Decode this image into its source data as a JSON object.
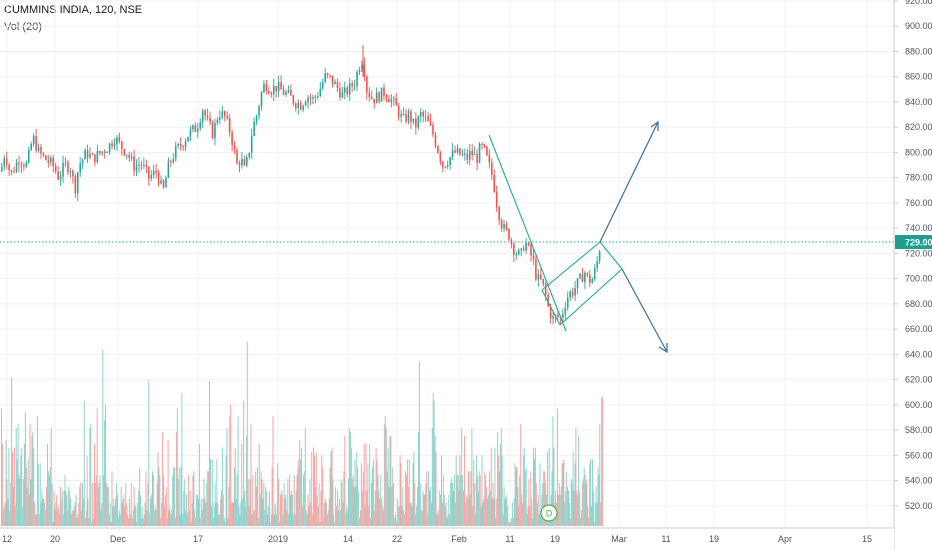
{
  "header": {
    "symbol_line": "CUMMINS INDIA, 120, NSE",
    "volume_label": "Vol (20)"
  },
  "colors": {
    "up": "#26a69a",
    "down": "#ef5350",
    "vol_up": "#8fd3cb",
    "vol_down": "#f7a6a4",
    "drawing": "#26a69a",
    "arrow": "#3d6f93",
    "grid": "#eef0f3",
    "last_price_bg": "#1e9e8f"
  },
  "chart_data": {
    "type": "candlestick",
    "y_axis": {
      "ticks": [
        "920.00",
        "900.00",
        "880.00",
        "860.00",
        "840.00",
        "820.00",
        "800.00",
        "780.00",
        "760.00",
        "740.00",
        "720.00",
        "700.00",
        "680.00",
        "660.00",
        "640.00",
        "620.00",
        "600.00",
        "580.00",
        "560.00",
        "540.00",
        "520.00"
      ],
      "range": [
        511,
        921
      ]
    },
    "x_axis": {
      "labels": [
        "12",
        "20",
        "Dec",
        "17",
        "2019",
        "14",
        "22",
        "Feb",
        "11",
        "19",
        "Mar",
        "11",
        "19",
        "Apr",
        "15"
      ]
    },
    "last_price": {
      "label": "729.00",
      "value": 729
    },
    "series": [
      {
        "name": "price",
        "path": [
          [
            0,
            785
          ],
          [
            4,
            800
          ],
          [
            10,
            782
          ],
          [
            18,
            795
          ],
          [
            26,
            790
          ],
          [
            32,
            812
          ],
          [
            38,
            800
          ],
          [
            44,
            795
          ],
          [
            52,
            790
          ],
          [
            58,
            780
          ],
          [
            64,
            790
          ],
          [
            70,
            788
          ],
          [
            74,
            770
          ],
          [
            78,
            790
          ],
          [
            86,
            800
          ],
          [
            92,
            795
          ],
          [
            100,
            800
          ],
          [
            108,
            805
          ],
          [
            114,
            812
          ],
          [
            120,
            805
          ],
          [
            126,
            800
          ],
          [
            134,
            788
          ],
          [
            140,
            792
          ],
          [
            148,
            780
          ],
          [
            156,
            785
          ],
          [
            162,
            768
          ],
          [
            168,
            790
          ],
          [
            174,
            800
          ],
          [
            182,
            808
          ],
          [
            188,
            815
          ],
          [
            196,
            820
          ],
          [
            202,
            835
          ],
          [
            206,
            825
          ],
          [
            212,
            815
          ],
          [
            218,
            832
          ],
          [
            224,
            828
          ],
          [
            230,
            815
          ],
          [
            236,
            790
          ],
          [
            240,
            795
          ],
          [
            244,
            785
          ],
          [
            248,
            800
          ],
          [
            252,
            820
          ],
          [
            256,
            830
          ],
          [
            260,
            845
          ],
          [
            264,
            855
          ],
          [
            270,
            850
          ],
          [
            276,
            852
          ],
          [
            282,
            848
          ],
          [
            288,
            845
          ],
          [
            294,
            840
          ],
          [
            300,
            838
          ],
          [
            306,
            845
          ],
          [
            312,
            842
          ],
          [
            318,
            848
          ],
          [
            324,
            860
          ],
          [
            330,
            858
          ],
          [
            336,
            852
          ],
          [
            342,
            845
          ],
          [
            348,
            850
          ],
          [
            354,
            856
          ],
          [
            358,
            868
          ],
          [
            362,
            875
          ],
          [
            366,
            850
          ],
          [
            372,
            842
          ],
          [
            378,
            845
          ],
          [
            384,
            848
          ],
          [
            390,
            842
          ],
          [
            396,
            835
          ],
          [
            402,
            825
          ],
          [
            408,
            830
          ],
          [
            414,
            820
          ],
          [
            420,
            830
          ],
          [
            426,
            825
          ],
          [
            432,
            815
          ],
          [
            438,
            800
          ],
          [
            442,
            790
          ],
          [
            448,
            795
          ],
          [
            454,
            800
          ],
          [
            460,
            798
          ],
          [
            466,
            795
          ],
          [
            470,
            800
          ],
          [
            476,
            795
          ],
          [
            480,
            805
          ],
          [
            484,
            800
          ],
          [
            488,
            790
          ],
          [
            492,
            780
          ],
          [
            496,
            760
          ],
          [
            500,
            745
          ],
          [
            504,
            738
          ],
          [
            508,
            735
          ],
          [
            512,
            725
          ],
          [
            516,
            720
          ],
          [
            520,
            718
          ],
          [
            524,
            730
          ],
          [
            528,
            722
          ],
          [
            532,
            715
          ],
          [
            536,
            700
          ],
          [
            540,
            698
          ],
          [
            544,
            690
          ],
          [
            548,
            675
          ],
          [
            552,
            668
          ],
          [
            556,
            670
          ],
          [
            560,
            668
          ],
          [
            564,
            680
          ],
          [
            568,
            688
          ],
          [
            572,
            690
          ],
          [
            576,
            695
          ],
          [
            580,
            700
          ],
          [
            584,
            705
          ],
          [
            588,
            698
          ],
          [
            592,
            700
          ],
          [
            596,
            712
          ],
          [
            600,
            729
          ]
        ]
      },
      {
        "name": "volume",
        "values": [
          30,
          21,
          4,
          5,
          6,
          22,
          12,
          7,
          20,
          4,
          11,
          38,
          19,
          10,
          20,
          5,
          25,
          17,
          26,
          13,
          12,
          18,
          20,
          5,
          12,
          21,
          29,
          15,
          10,
          17,
          8,
          26,
          12,
          23,
          24,
          20,
          6,
          3,
          3,
          28,
          16,
          3,
          16,
          6,
          9,
          7,
          7,
          6,
          4,
          10,
          21,
          14,
          13,
          15,
          25,
          11,
          1,
          9,
          4,
          6,
          8,
          4,
          5,
          3,
          10,
          7,
          9,
          3,
          9,
          13,
          9,
          8,
          4,
          10,
          9,
          7,
          3,
          4,
          4,
          5,
          6,
          8,
          2,
          3,
          6,
          10,
          11,
          4,
          11,
          7,
          32,
          2,
          4,
          18,
          7,
          2,
          25,
          26,
          1,
          11,
          2,
          21,
          11,
          13,
          30,
          10,
          11,
          13,
          4,
          6,
          45,
          13,
          27,
          31,
          11,
          10,
          10,
          3,
          6,
          1,
          14,
          5,
          7,
          5,
          7,
          11,
          8,
          2,
          4,
          3,
          10,
          6,
          7,
          8,
          5,
          11,
          6,
          3,
          2,
          7,
          3,
          11,
          2,
          4,
          10,
          5,
          5,
          1,
          6,
          9,
          15,
          8,
          2,
          5,
          2,
          3,
          6,
          14,
          4,
          11,
          37,
          3,
          7,
          8,
          14,
          13,
          4,
          5,
          4,
          11,
          19,
          15,
          13,
          2,
          6,
          24,
          13,
          5,
          8,
          10,
          2,
          22,
          4,
          5,
          3,
          4,
          13,
          15,
          15,
          2,
          24,
          30,
          12,
          15,
          3,
          15,
          34,
          3,
          9,
          12,
          4,
          8,
          3,
          13,
          4,
          9,
          1,
          6,
          13,
          14,
          4,
          2,
          8,
          8,
          7,
          21,
          2,
          7,
          4,
          7,
          12,
          7,
          6,
          11,
          14,
          14,
          37,
          17,
          5,
          17,
          2,
          5,
          11,
          6,
          17,
          6,
          3,
          3,
          7,
          9,
          20,
          8,
          2,
          1,
          18,
          25,
          2,
          10,
          28,
          31,
          6,
          6,
          6,
          15,
          20,
          7,
          13,
          28,
          5,
          3,
          6,
          21,
          7,
          32,
          9,
          5,
          23,
          47,
          12,
          5,
          12,
          26,
          3,
          13,
          4,
          4,
          14,
          10,
          15,
          2,
          21,
          8,
          14,
          12,
          7,
          11,
          4,
          10,
          9,
          3,
          5,
          9,
          1,
          3,
          15,
          28,
          3,
          6,
          5,
          3,
          16,
          12,
          1,
          8,
          9,
          8,
          3,
          11,
          7,
          8,
          4,
          12,
          3,
          13,
          8,
          9,
          8,
          3,
          13,
          3,
          9,
          13,
          15,
          17,
          22,
          17,
          20,
          5,
          13,
          14,
          25,
          4,
          3,
          8,
          5,
          12,
          6,
          19,
          3,
          20,
          18,
          10,
          19,
          8,
          5,
          11,
          1,
          9,
          18,
          15,
          2,
          6,
          7,
          6,
          3,
          4,
          7,
          15,
          19,
          20,
          12,
          3,
          1,
          10,
          5,
          9,
          4,
          7,
          4,
          12,
          11,
          6,
          14,
          23,
          3,
          5,
          4,
          12,
          25,
          24,
          20,
          12,
          13,
          10,
          17,
          10,
          19,
          15,
          9,
          2,
          4,
          16,
          9,
          14,
          21,
          5,
          21,
          9,
          16,
          5,
          21,
          2,
          11,
          15,
          17,
          4,
          9,
          20,
          17,
          13,
          9,
          7,
          13,
          7,
          5,
          4,
          26,
          28,
          25,
          14,
          20,
          10,
          23,
          23,
          10,
          15,
          11,
          2,
          3,
          1,
          7,
          5,
          5,
          18,
          16,
          5,
          10,
          4,
          3,
          14,
          13,
          17,
          10,
          17,
          6,
          6,
          5,
          16,
          19,
          11,
          3,
          5,
          10,
          24,
          42,
          11,
          4,
          4,
          9,
          8,
          8,
          11,
          14,
          3,
          14,
          9,
          10,
          6,
          25,
          34,
          32,
          23,
          19,
          3,
          3,
          4,
          9,
          8,
          18,
          6,
          13,
          8,
          5,
          6,
          2,
          3,
          8,
          3,
          11,
          12,
          11,
          9,
          13,
          6,
          18,
          13,
          13,
          9,
          18,
          13,
          25,
          13,
          9,
          23,
          6,
          8,
          7,
          14,
          14,
          8,
          14,
          25,
          5,
          17,
          11,
          3,
          18,
          13,
          9,
          14,
          13,
          5,
          18,
          6,
          7,
          14,
          13,
          10,
          7,
          8,
          14,
          9,
          20,
          7,
          11,
          7,
          20,
          2,
          7,
          24,
          18,
          14,
          21,
          25,
          18,
          3,
          10,
          7,
          7,
          8,
          5,
          1,
          1,
          1,
          2,
          6,
          2,
          7,
          16,
          15,
          15,
          10,
          5,
          13,
          26,
          8,
          6,
          18,
          20,
          14,
          15,
          3,
          5,
          12,
          5,
          14,
          7,
          2,
          20,
          17,
          20,
          11,
          6,
          8,
          3,
          16,
          3,
          8,
          11,
          14,
          14,
          11,
          8,
          19,
          5,
          20,
          5,
          8,
          14,
          28,
          20,
          6,
          9,
          6,
          30,
          8,
          11,
          8,
          10,
          16,
          16,
          17,
          6,
          9,
          14,
          10,
          9,
          6,
          2,
          12,
          11,
          19,
          9,
          16,
          25,
          9,
          8,
          23,
          9,
          2,
          4,
          11,
          12,
          15,
          13,
          11,
          12,
          5,
          2,
          16,
          17,
          5,
          17,
          9,
          1,
          6,
          10,
          6,
          15,
          13,
          26,
          6,
          33,
          33
        ]
      }
    ]
  }
}
